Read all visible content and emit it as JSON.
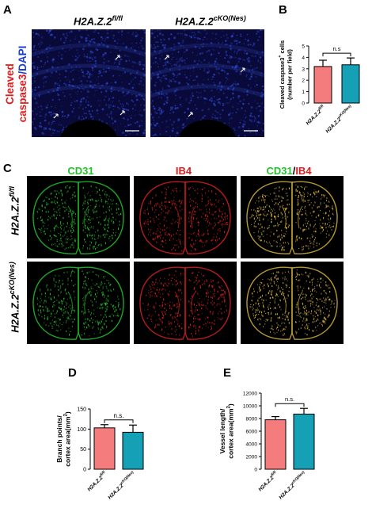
{
  "panel_letters": {
    "A": "A",
    "B": "B",
    "C": "C",
    "D": "D",
    "E": "E"
  },
  "panelA": {
    "ylabel_red": "Cleaved",
    "ylabel_red2": "caspase3",
    "ylabel_slash": "/",
    "ylabel_blue": "DAPI",
    "col1_base": "H2A.Z.2",
    "col1_sup": "fl/fl",
    "col2_base": "H2A.Z.2",
    "col2_sup": "cKO(Nes)",
    "colors": {
      "red": "#e01e1e",
      "blue": "#1a3fd1",
      "bg": "#0a0a3a",
      "arrow": "#ffffff"
    }
  },
  "panelC": {
    "headers": {
      "cd31": "CD31",
      "ib4": "IB4",
      "merge_a": "CD31",
      "merge_slash": "/",
      "merge_b": "IB4"
    },
    "row1_base": "H2A.Z.2",
    "row1_sup": "fl/fl",
    "row2_base": "H2A.Z.2",
    "row2_sup": "cKO(Nes)",
    "colors": {
      "green": "#22c22a",
      "red": "#d81f1f",
      "merge": "#d7b23a"
    }
  },
  "chart_data": [
    {
      "type": "bar",
      "panel": "B",
      "categories": [
        "H2A.Z.2fl/fl",
        "H2A.Z.2cKO(Nes)"
      ],
      "category_base": [
        "H2A.Z.2",
        "H2A.Z.2"
      ],
      "category_sup": [
        "fl/fl",
        "cKO(Nes)"
      ],
      "values": [
        3.2,
        3.35
      ],
      "errors": [
        0.55,
        0.6
      ],
      "colors": [
        "#f47c7c",
        "#16a0b5"
      ],
      "ylabel_line1": "Cleaved caspase3",
      "ylabel_sup": "+",
      "ylabel_line1b": " cells",
      "ylabel_line2": "(number per field)",
      "ylim": [
        0,
        5
      ],
      "yticks": [
        "0",
        "1",
        "2",
        "3",
        "4",
        "5"
      ],
      "annotation": "n.s"
    },
    {
      "type": "bar",
      "panel": "D",
      "categories": [
        "H2A.Z.2fl/fl",
        "H2A.Z.2cKO(Nes)"
      ],
      "category_base": [
        "H2A.Z.2",
        "H2A.Z.2"
      ],
      "category_sup": [
        "fl/fl",
        "cKO(Nes)"
      ],
      "values": [
        103,
        92
      ],
      "errors": [
        8,
        18
      ],
      "colors": [
        "#f47c7c",
        "#16a0b5"
      ],
      "ylabel_line1": "Branch points/",
      "ylabel_line2": "cortex area(mm",
      "ylabel_sup": "2",
      "ylabel_end": ")",
      "ylim": [
        0,
        150
      ],
      "yticks": [
        "0",
        "50",
        "100",
        "150"
      ],
      "annotation": "n.s."
    },
    {
      "type": "bar",
      "panel": "E",
      "categories": [
        "H2A.Z.2fl/fl",
        "H2A.Z.2cKO(Nes)"
      ],
      "category_base": [
        "H2A.Z.2",
        "H2A.Z.2"
      ],
      "category_sup": [
        "fl/fl",
        "cKO(Nes)"
      ],
      "values": [
        7800,
        8700
      ],
      "errors": [
        500,
        900
      ],
      "colors": [
        "#f47c7c",
        "#16a0b5"
      ],
      "ylabel_line1": "Vessel length/",
      "ylabel_line2": "cortex area(mm",
      "ylabel_sup": "2",
      "ylabel_end": ")",
      "ylim": [
        0,
        12000
      ],
      "yticks": [
        "0",
        "2000",
        "4000",
        "6000",
        "8000",
        "10000",
        "12000"
      ],
      "annotation": "n.s."
    }
  ]
}
